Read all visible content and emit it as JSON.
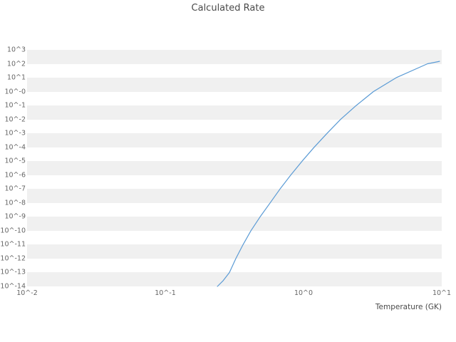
{
  "title": "Calculated Rate",
  "x_axis": {
    "label": "Temperature (GK)",
    "tick_labels": [
      "10^-2",
      "10^-1",
      "10^0",
      "10^1"
    ],
    "log_min": -2,
    "log_max": 1
  },
  "y_axis": {
    "label": "",
    "tick_labels": [
      "10^3",
      "10^2",
      "10^1",
      "10^-0",
      "10^-1",
      "10^-2",
      "10^-3",
      "10^-4",
      "10^-5",
      "10^-6",
      "10^-7",
      "10^-8",
      "10^-9",
      "10^-10",
      "10^-11",
      "10^-12",
      "10^-13",
      "10^-14"
    ],
    "log_min": -14,
    "log_max": 3
  },
  "style": {
    "line_color": "#5b9bd5",
    "band_color": "#f0f0f0",
    "background_color": "#ffffff",
    "text_color": "#666666",
    "title_color": "#4a4a4a"
  },
  "chart_data": {
    "type": "line",
    "title": "Calculated Rate",
    "xlabel": "Temperature (GK)",
    "ylabel": "",
    "x_scale": "log",
    "y_scale": "log",
    "xlim": [
      0.01,
      10
    ],
    "ylim": [
      1e-14,
      1000
    ],
    "grid": "alternating horizontal decade bands, no vertical gridlines",
    "legend": "none",
    "series": [
      {
        "name": "Calculated Rate",
        "x": [
          0.238,
          0.262,
          0.291,
          0.324,
          0.365,
          0.416,
          0.485,
          0.573,
          0.676,
          0.808,
          0.977,
          1.194,
          1.479,
          1.853,
          2.404,
          3.199,
          4.677,
          7.889,
          9.64
        ],
        "y": [
          1e-14,
          2.6e-14,
          1e-13,
          1e-12,
          1e-11,
          1e-10,
          1e-09,
          1e-08,
          1e-07,
          1e-06,
          1e-05,
          0.0001,
          0.001,
          0.01,
          0.1,
          1.0,
          10,
          100,
          150
        ]
      }
    ]
  }
}
